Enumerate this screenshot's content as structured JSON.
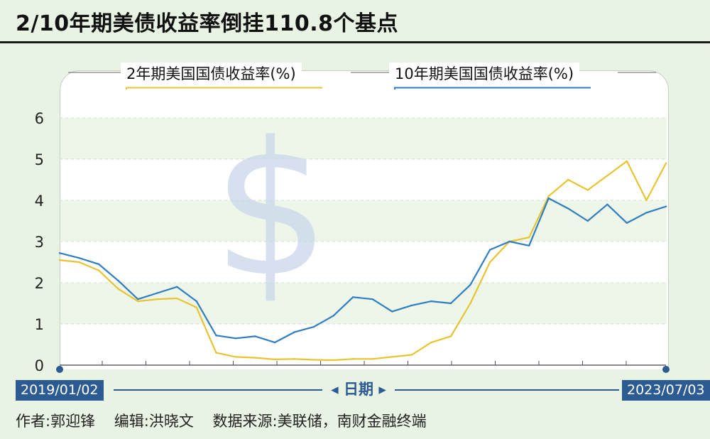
{
  "title": "2/10年期美债收益率倒挂110.8个基点",
  "x_axis": {
    "title_arrow_left": "◂",
    "title": "日期",
    "title_arrow_right": "▸",
    "start_label": "2019/01/02",
    "end_label": "2023/07/03"
  },
  "credits": {
    "author": "作者:郭迎锋",
    "editor": "编辑:洪晓文",
    "source": "数据来源:美联储，南财金融终端"
  },
  "colors": {
    "two_year": "#e8c430",
    "ten_year": "#2f7ec2",
    "accent": "#2c5b93",
    "background": "#e9f3e3"
  },
  "chart_data": {
    "type": "line",
    "title": "2/10年期美债收益率倒挂110.8个基点",
    "xlabel": "日期",
    "ylabel": "",
    "ylim": [
      0,
      7
    ],
    "yticks": [
      0,
      1,
      2,
      3,
      4,
      5,
      6
    ],
    "grid": true,
    "legend_position": "top",
    "watermark": "$",
    "x": [
      "2019-01",
      "2019-03",
      "2019-05",
      "2019-07",
      "2019-08",
      "2019-10",
      "2019-12",
      "2020-02",
      "2020-03",
      "2020-04",
      "2020-06",
      "2020-08",
      "2020-10",
      "2020-12",
      "2021-02",
      "2021-03",
      "2021-05",
      "2021-07",
      "2021-09",
      "2021-11",
      "2021-12",
      "2022-02",
      "2022-04",
      "2022-06",
      "2022-08",
      "2022-10",
      "2022-11",
      "2023-01",
      "2023-02",
      "2023-03",
      "2023-05",
      "2023-07"
    ],
    "series": [
      {
        "name": "2年期美国国债收益率(%)",
        "color": "#e8c430",
        "values": [
          2.55,
          2.5,
          2.3,
          1.85,
          1.55,
          1.6,
          1.62,
          1.4,
          0.3,
          0.2,
          0.18,
          0.14,
          0.15,
          0.13,
          0.12,
          0.15,
          0.15,
          0.2,
          0.25,
          0.55,
          0.7,
          1.5,
          2.5,
          3.0,
          3.1,
          4.1,
          4.5,
          4.25,
          4.6,
          4.95,
          4.0,
          4.9
        ]
      },
      {
        "name": "10年期美国国债收益率(%)",
        "color": "#2f7ec2",
        "values": [
          2.72,
          2.6,
          2.45,
          2.05,
          1.6,
          1.75,
          1.9,
          1.55,
          0.72,
          0.65,
          0.7,
          0.55,
          0.8,
          0.93,
          1.2,
          1.65,
          1.6,
          1.3,
          1.45,
          1.55,
          1.5,
          1.95,
          2.8,
          3.0,
          2.9,
          4.05,
          3.8,
          3.5,
          3.9,
          3.45,
          3.7,
          3.85
        ]
      }
    ]
  }
}
